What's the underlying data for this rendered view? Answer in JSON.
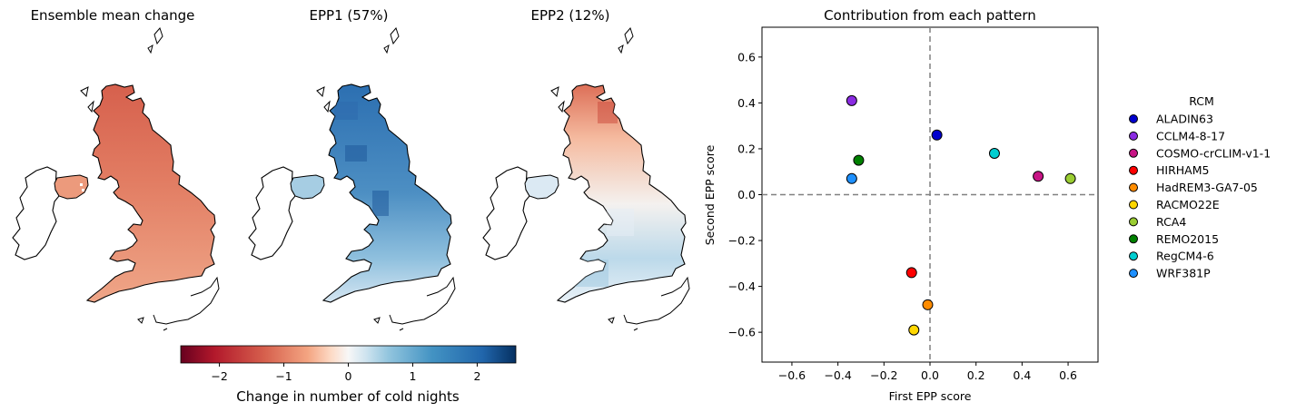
{
  "panels": {
    "map1_title": "Ensemble mean change",
    "map2_title": "EPP1 (57%)",
    "map3_title": "EPP2 (12%)"
  },
  "colorbar": {
    "label": "Change in number of cold nights",
    "colormap": "RdBu",
    "range": [
      -2.6,
      2.6
    ],
    "ticks": [
      "−2",
      "−1",
      "0",
      "1",
      "2"
    ]
  },
  "chart_data": {
    "type": "scatter",
    "title": "Contribution from each pattern",
    "xlabel": "First EPP score",
    "ylabel": "Second EPP score",
    "xlim": [
      -0.73,
      0.73
    ],
    "ylim": [
      -0.73,
      0.73
    ],
    "xticks": [
      "−0.6",
      "−0.4",
      "−0.2",
      "0.0",
      "0.2",
      "0.4",
      "0.6"
    ],
    "yticks": [
      "−0.6",
      "−0.4",
      "−0.2",
      "0.0",
      "0.2",
      "0.4",
      "0.6"
    ],
    "reference_lines": {
      "x": 0,
      "y": 0,
      "style": "dashed",
      "color": "#808080"
    },
    "legend_title": "RCM",
    "legend_position": "right",
    "series": [
      {
        "name": "ALADIN63",
        "x": 0.03,
        "y": 0.26,
        "color": "#0000cd"
      },
      {
        "name": "CCLM4-8-17",
        "x": -0.34,
        "y": 0.41,
        "color": "#8a2be2"
      },
      {
        "name": "COSMO-crCLIM-v1-1",
        "x": 0.47,
        "y": 0.08,
        "color": "#c71585"
      },
      {
        "name": "HIRHAM5",
        "x": -0.08,
        "y": -0.34,
        "color": "#ff0000"
      },
      {
        "name": "HadREM3-GA7-05",
        "x": -0.01,
        "y": -0.48,
        "color": "#ff8c00"
      },
      {
        "name": "RACMO22E",
        "x": -0.07,
        "y": -0.59,
        "color": "#ffd700"
      },
      {
        "name": "RCA4",
        "x": 0.61,
        "y": 0.07,
        "color": "#9acd32"
      },
      {
        "name": "REMO2015",
        "x": -0.31,
        "y": 0.15,
        "color": "#008000"
      },
      {
        "name": "RegCM4-6",
        "x": 0.28,
        "y": 0.18,
        "color": "#00ced1"
      },
      {
        "name": "WRF381P",
        "x": -0.34,
        "y": 0.07,
        "color": "#1e90ff"
      }
    ]
  }
}
